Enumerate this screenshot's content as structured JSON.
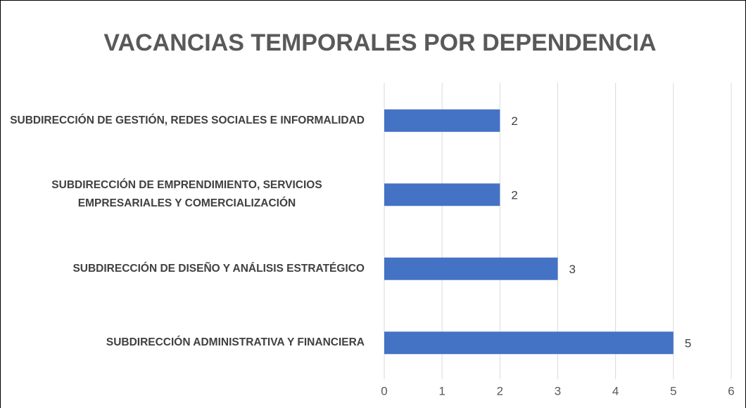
{
  "chart_data": {
    "type": "bar",
    "orientation": "horizontal",
    "title": "VACANCIAS TEMPORALES POR DEPENDENCIA",
    "categories": [
      "SUBDIRECCIÓN DE GESTIÓN, REDES SOCIALES E INFORMALIDAD",
      "SUBDIRECCIÓN DE EMPRENDIMIENTO, SERVICIOS EMPRESARIALES Y COMERCIALIZACIÓN",
      "SUBDIRECCIÓN DE DISEÑO Y ANÁLISIS ESTRATÉGICO",
      "SUBDIRECCIÓN ADMINISTRATIVA Y FINANCIERA"
    ],
    "values": [
      2,
      2,
      3,
      5
    ],
    "color": "#4472c4",
    "xlim": [
      0,
      6
    ],
    "xticks": [
      0,
      1,
      2,
      3,
      4,
      5,
      6
    ],
    "grid": true
  }
}
